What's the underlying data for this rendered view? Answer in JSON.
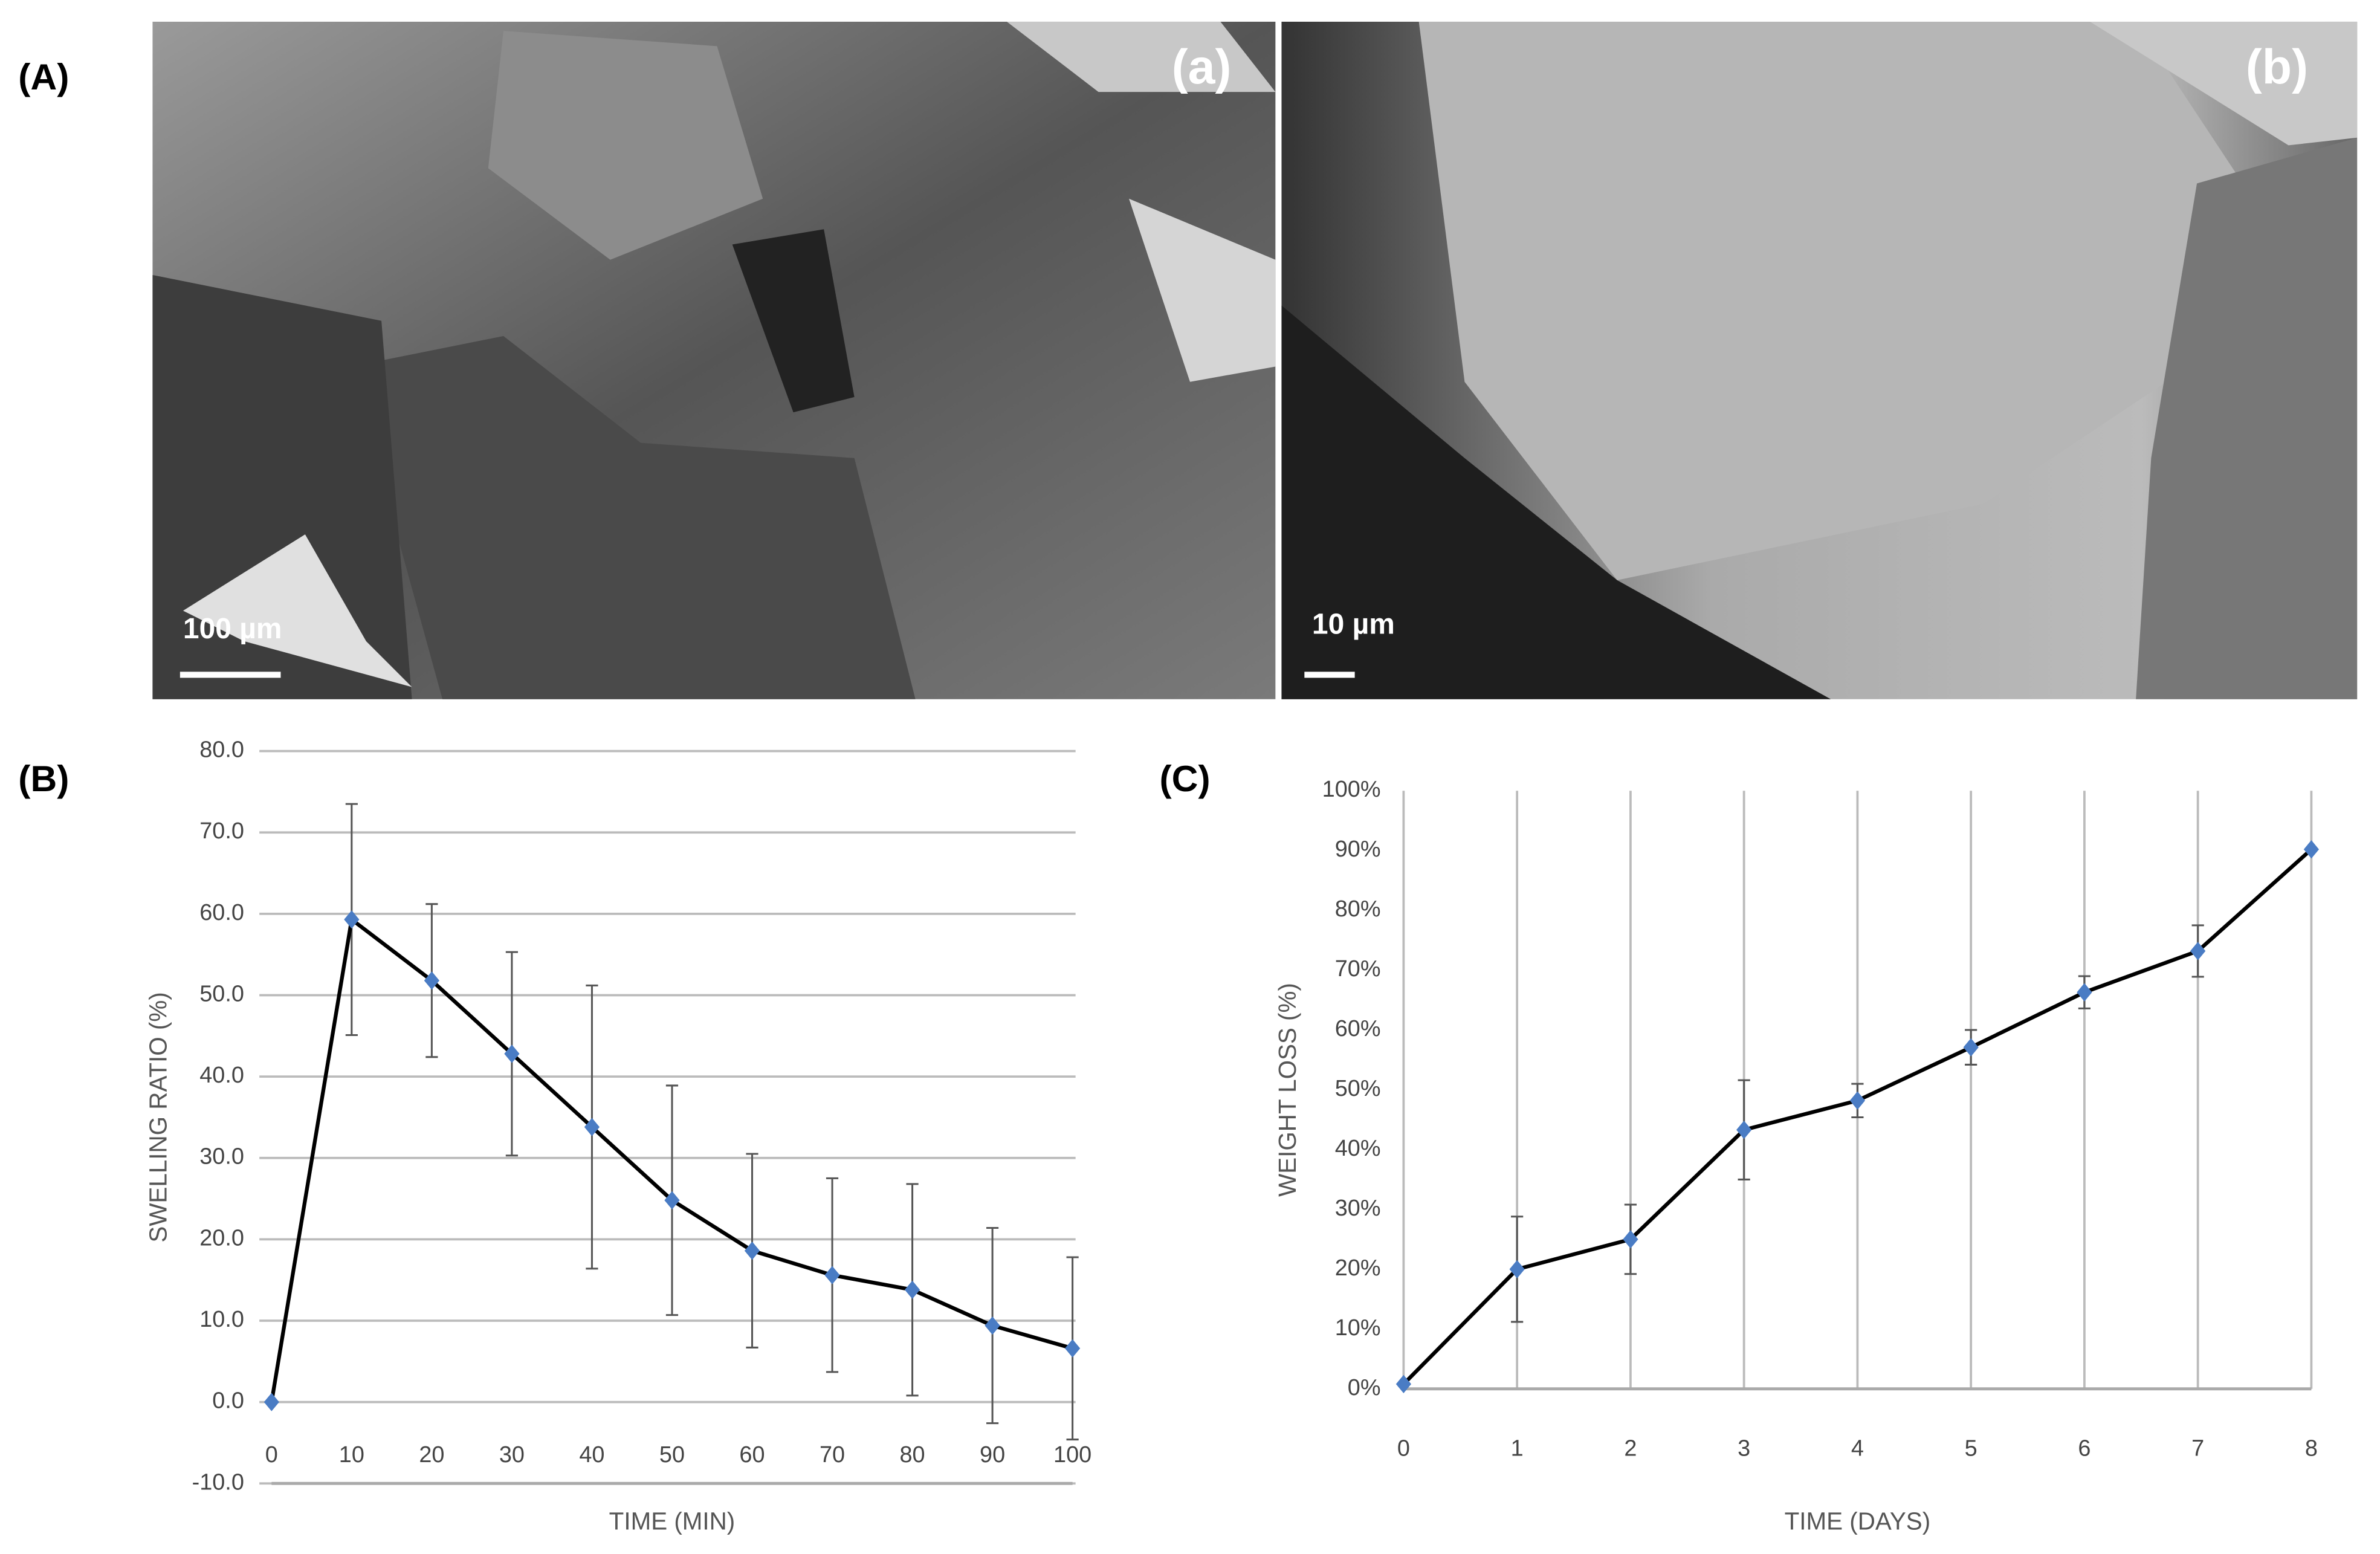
{
  "figure": {
    "panel_labels": [
      "(A)",
      "(B)",
      "(C)"
    ],
    "images": [
      {
        "label": "(a)",
        "scale": "100 µm"
      },
      {
        "label": "(b)",
        "scale": "10 µm"
      }
    ]
  },
  "chart_data": [
    {
      "type": "line",
      "xlabel": "TIME (MIN)",
      "ylabel": "SWELLING RATIO (%)",
      "x": [
        0,
        10,
        20,
        30,
        40,
        50,
        60,
        70,
        80,
        90,
        100
      ],
      "series": [
        {
          "color": "#4a7cc4",
          "line_color": "#000000",
          "values": [
            0,
            59.3,
            51.8,
            42.8,
            33.8,
            24.8,
            18.6,
            15.6,
            13.8,
            9.4,
            6.6
          ],
          "errors": [
            0,
            14.2,
            9.4,
            12.5,
            17.4,
            14.1,
            11.9,
            11.9,
            13,
            12,
            11.2
          ]
        }
      ],
      "xlim": [
        0,
        100
      ],
      "xticks": [
        0,
        10,
        20,
        30,
        40,
        50,
        60,
        70,
        80,
        90,
        100
      ],
      "ylim": [
        -10,
        80
      ],
      "yticks": [
        {
          "value": -10,
          "label": "-10.0"
        },
        {
          "value": 0,
          "label": "0.0"
        },
        {
          "value": 10,
          "label": "10.0"
        },
        {
          "value": 20,
          "label": "20.0"
        },
        {
          "value": 30,
          "label": "30.0"
        },
        {
          "value": 40,
          "label": "40.0"
        },
        {
          "value": 50,
          "label": "50.0"
        },
        {
          "value": 60,
          "label": "60.0"
        },
        {
          "value": 70,
          "label": "70.0"
        },
        {
          "value": 80,
          "label": "80.0"
        }
      ],
      "grid": "y"
    },
    {
      "type": "line",
      "xlabel": "TIME (DAYS)",
      "ylabel": "WEIGHT LOSS (%)",
      "x": [
        0,
        1,
        2,
        3,
        4,
        5,
        6,
        7,
        8
      ],
      "series": [
        {
          "color": "#4a7cc4",
          "line_color": "#000000",
          "values": [
            0.8,
            20,
            25,
            43.3,
            48.2,
            57.1,
            66.3,
            73.2,
            90.2
          ],
          "errors": [
            0,
            8.8,
            5.8,
            8.3,
            2.8,
            2.9,
            2.7,
            4.3,
            0
          ]
        }
      ],
      "xlim": [
        0,
        8
      ],
      "xticks": [
        0,
        1,
        2,
        3,
        4,
        5,
        6,
        7,
        8
      ],
      "ylim": [
        0,
        100
      ],
      "yticks": [
        {
          "value": 0,
          "label": "0%"
        },
        {
          "value": 10,
          "label": "10%"
        },
        {
          "value": 20,
          "label": "20%"
        },
        {
          "value": 30,
          "label": "30%"
        },
        {
          "value": 40,
          "label": "40%"
        },
        {
          "value": 50,
          "label": "50%"
        },
        {
          "value": 60,
          "label": "60%"
        },
        {
          "value": 70,
          "label": "70%"
        },
        {
          "value": 80,
          "label": "80%"
        },
        {
          "value": 90,
          "label": "90%"
        },
        {
          "value": 100,
          "label": "100%"
        }
      ],
      "grid": "x"
    }
  ]
}
